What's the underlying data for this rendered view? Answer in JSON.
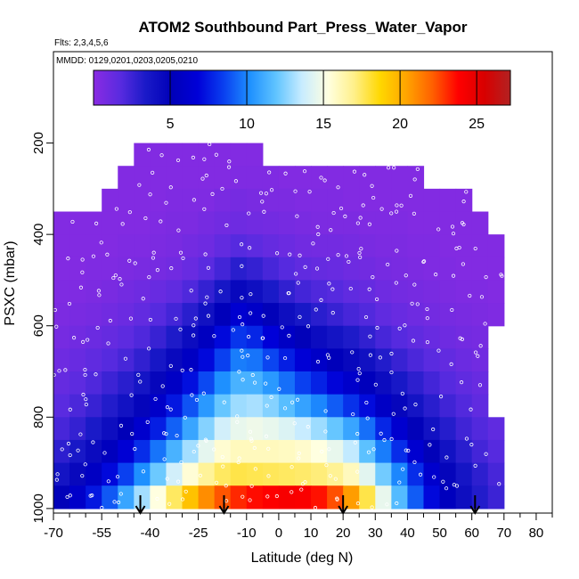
{
  "chart_data": {
    "type": "heatmap",
    "title": "ATOM2 Southbound Part_Press_Water_Vapor",
    "info_lines": [
      "Flts: 2,3,4,5,6",
      "MMDD: 0129,0201,0203,0205,0210"
    ],
    "xlabel": "Latitude (deg N)",
    "ylabel": "PSXC (mbar)",
    "xlim": [
      -70,
      85
    ],
    "ylim": [
      1010,
      0
    ],
    "x_ticks": [
      -70,
      -55,
      -40,
      -25,
      -10,
      0,
      10,
      20,
      30,
      40,
      50,
      60,
      70,
      80
    ],
    "x_minor_ticks": [
      -65,
      -60,
      -50,
      -45,
      -35,
      -30,
      -20,
      -15,
      -5,
      5,
      15,
      25,
      35,
      45,
      55,
      65,
      75,
      85
    ],
    "y_ticks": [
      200,
      400,
      600,
      800,
      1000
    ],
    "colorbar": {
      "range": [
        0,
        27.2
      ],
      "ticks": [
        5,
        10,
        15,
        20,
        25
      ],
      "colors": [
        "#8a2be2",
        "#5a2be0",
        "#1a1ac8",
        "#0000b8",
        "#0000d8",
        "#0a40f0",
        "#1e90ff",
        "#60c4ff",
        "#c8ecff",
        "#ffffe0",
        "#fff08a",
        "#ffd700",
        "#ffa500",
        "#ff6000",
        "#ff0000",
        "#d80000",
        "#b22222"
      ]
    },
    "lat_edges": [
      -70,
      -65,
      -60,
      -55,
      -50,
      -45,
      -40,
      -35,
      -30,
      -25,
      -20,
      -15,
      -10,
      -5,
      0,
      5,
      10,
      15,
      20,
      25,
      30,
      35,
      40,
      45,
      50,
      55,
      60,
      65,
      70
    ],
    "pressure_levels": [
      {
        "p": 225,
        "wv": [
          null,
          null,
          null,
          null,
          null,
          0.3,
          0.3,
          0.3,
          0.3,
          0.3,
          0.3,
          0.3,
          0.3,
          null,
          null,
          null,
          null,
          null,
          null,
          null,
          null,
          null,
          null,
          null,
          null,
          null,
          null,
          null
        ]
      },
      {
        "p": 275,
        "wv": [
          null,
          null,
          null,
          null,
          0.3,
          0.3,
          0.3,
          0.3,
          0.3,
          0.3,
          0.3,
          0.4,
          0.4,
          0.4,
          0.3,
          0.3,
          0.3,
          0.3,
          0.3,
          0.3,
          0.3,
          0.3,
          0.3,
          null,
          null,
          null,
          null,
          null
        ]
      },
      {
        "p": 325,
        "wv": [
          null,
          null,
          null,
          0.3,
          0.3,
          0.3,
          0.3,
          0.4,
          0.4,
          0.4,
          0.6,
          0.7,
          0.6,
          0.5,
          0.5,
          0.4,
          0.4,
          0.4,
          0.3,
          0.3,
          0.3,
          0.3,
          0.3,
          0.3,
          0.3,
          0.3,
          null,
          null
        ]
      },
      {
        "p": 375,
        "wv": [
          0.3,
          0.3,
          0.3,
          0.3,
          0.3,
          0.3,
          0.4,
          0.5,
          0.5,
          0.7,
          0.9,
          1.0,
          0.9,
          0.8,
          0.7,
          0.6,
          0.5,
          0.5,
          0.5,
          0.4,
          0.4,
          0.4,
          0.3,
          0.3,
          0.3,
          0.3,
          0.3,
          null
        ]
      },
      {
        "p": 425,
        "wv": [
          0.3,
          0.3,
          0.3,
          0.3,
          0.4,
          0.4,
          0.5,
          0.6,
          0.8,
          1.0,
          1.4,
          1.8,
          1.6,
          1.3,
          1.1,
          0.9,
          0.8,
          0.8,
          0.7,
          0.6,
          0.5,
          0.5,
          0.4,
          0.4,
          0.3,
          0.3,
          0.3,
          0.3
        ]
      },
      {
        "p": 475,
        "wv": [
          0.3,
          0.3,
          0.4,
          0.4,
          0.5,
          0.6,
          0.7,
          0.9,
          1.2,
          1.7,
          2.3,
          3.0,
          2.7,
          2.2,
          1.8,
          1.5,
          1.3,
          1.2,
          1.0,
          0.9,
          0.7,
          0.6,
          0.5,
          0.4,
          0.4,
          0.3,
          0.3,
          0.3
        ]
      },
      {
        "p": 525,
        "wv": [
          0.4,
          0.4,
          0.5,
          0.6,
          0.8,
          1.0,
          1.2,
          1.5,
          2.0,
          2.7,
          3.6,
          4.6,
          4.1,
          3.4,
          2.8,
          2.3,
          2.0,
          1.8,
          1.5,
          1.3,
          1.0,
          0.8,
          0.7,
          0.6,
          0.5,
          0.4,
          0.4,
          0.3
        ]
      },
      {
        "p": 575,
        "wv": [
          0.5,
          0.6,
          0.7,
          0.9,
          1.1,
          1.4,
          1.8,
          2.3,
          3.0,
          4.0,
          5.2,
          6.4,
          5.9,
          5.0,
          4.2,
          3.5,
          3.0,
          2.6,
          2.2,
          1.9,
          1.5,
          1.2,
          1.0,
          0.8,
          0.7,
          0.6,
          0.5,
          0.4
        ]
      },
      {
        "p": 625,
        "wv": [
          0.7,
          0.9,
          1.1,
          1.3,
          1.6,
          2.0,
          2.6,
          3.3,
          4.3,
          5.5,
          7.0,
          8.2,
          7.8,
          6.8,
          5.8,
          5.0,
          4.3,
          3.8,
          3.3,
          2.8,
          2.2,
          1.8,
          1.5,
          1.2,
          1.0,
          0.8,
          0.7,
          null
        ]
      },
      {
        "p": 675,
        "wv": [
          1.0,
          1.2,
          1.5,
          1.8,
          2.2,
          2.8,
          3.6,
          4.5,
          5.7,
          7.0,
          8.5,
          9.8,
          9.6,
          8.6,
          7.6,
          6.7,
          5.9,
          5.2,
          4.6,
          4.0,
          3.2,
          2.6,
          2.1,
          1.7,
          1.4,
          1.1,
          0.9,
          null
        ]
      },
      {
        "p": 725,
        "wv": [
          1.3,
          1.6,
          2.0,
          2.5,
          3.0,
          3.7,
          4.7,
          5.8,
          7.2,
          8.7,
          10.2,
          11.3,
          11.3,
          10.5,
          9.5,
          8.5,
          7.7,
          6.9,
          6.1,
          5.3,
          4.3,
          3.5,
          2.9,
          2.3,
          1.8,
          1.5,
          1.2,
          null
        ]
      },
      {
        "p": 775,
        "wv": [
          1.7,
          2.1,
          2.6,
          3.2,
          3.9,
          4.8,
          6.0,
          7.4,
          8.9,
          10.5,
          12.0,
          12.9,
          13.1,
          12.5,
          11.7,
          10.8,
          10.0,
          9.1,
          8.1,
          7.1,
          5.8,
          4.7,
          3.8,
          3.0,
          2.4,
          1.9,
          1.5,
          null
        ]
      },
      {
        "p": 825,
        "wv": [
          2.2,
          2.7,
          3.4,
          4.2,
          5.1,
          6.2,
          7.6,
          9.2,
          10.9,
          12.5,
          13.9,
          14.6,
          14.8,
          14.6,
          14.2,
          13.6,
          12.9,
          12.0,
          10.9,
          9.5,
          7.8,
          6.3,
          5.0,
          3.9,
          3.1,
          2.4,
          1.9,
          1.5
        ]
      },
      {
        "p": 875,
        "wv": [
          2.9,
          3.5,
          4.4,
          5.4,
          6.6,
          8.0,
          9.6,
          11.3,
          13.0,
          14.5,
          15.6,
          16.0,
          16.0,
          16.0,
          15.9,
          15.7,
          15.3,
          14.6,
          13.5,
          11.8,
          9.8,
          8.0,
          6.4,
          5.0,
          3.9,
          3.0,
          2.3,
          1.8
        ]
      },
      {
        "p": 925,
        "wv": [
          3.8,
          4.6,
          5.7,
          7.0,
          8.5,
          10.2,
          12.1,
          13.9,
          15.5,
          16.7,
          17.5,
          17.8,
          17.7,
          17.6,
          17.5,
          17.4,
          17.2,
          16.8,
          16.0,
          14.4,
          12.2,
          10.0,
          8.0,
          6.2,
          4.8,
          3.7,
          2.9,
          2.2
        ]
      },
      {
        "p": 975,
        "wv": [
          5.0,
          6.0,
          7.4,
          9.0,
          10.9,
          13.0,
          15.3,
          17.5,
          19.4,
          21.0,
          22.3,
          23.1,
          23.6,
          23.9,
          24.1,
          24.0,
          23.5,
          22.4,
          20.6,
          17.8,
          14.6,
          11.6,
          9.1,
          7.0,
          5.4,
          4.2,
          3.2,
          2.5
        ]
      }
    ],
    "flight_markers_lat": [
      -43,
      -17,
      20,
      61
    ]
  }
}
